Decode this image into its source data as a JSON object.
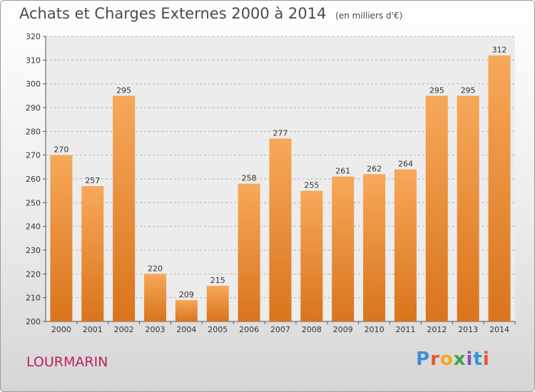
{
  "header": {
    "title": "Achats et Charges Externes 2000 à 2014",
    "subtitle": "(en milliers d'€)"
  },
  "footer": {
    "town": "LOURMARIN",
    "brand": "Proxiti",
    "brand_colors": [
      "#3d8fd6",
      "#e8562a",
      "#f2a81d",
      "#3aa64a",
      "#8a4fb8",
      "#2b9bd1",
      "#e8562a"
    ]
  },
  "chart_data": {
    "type": "bar",
    "categories": [
      "2000",
      "2001",
      "2002",
      "2003",
      "2004",
      "2005",
      "2006",
      "2007",
      "2008",
      "2009",
      "2010",
      "2011",
      "2012",
      "2013",
      "2014"
    ],
    "values": [
      270,
      257,
      295,
      220,
      209,
      215,
      258,
      277,
      255,
      261,
      262,
      264,
      295,
      295,
      312
    ],
    "title": "Achats et Charges Externes 2000 à 2014",
    "ylim": [
      200,
      320
    ],
    "yticks": [
      200,
      210,
      220,
      230,
      240,
      250,
      260,
      270,
      280,
      290,
      300,
      310,
      320
    ],
    "grid": true,
    "bar_color_top": "#f7a85a",
    "bar_color_bottom": "#d9741c",
    "plot_bg": "#ececec"
  }
}
